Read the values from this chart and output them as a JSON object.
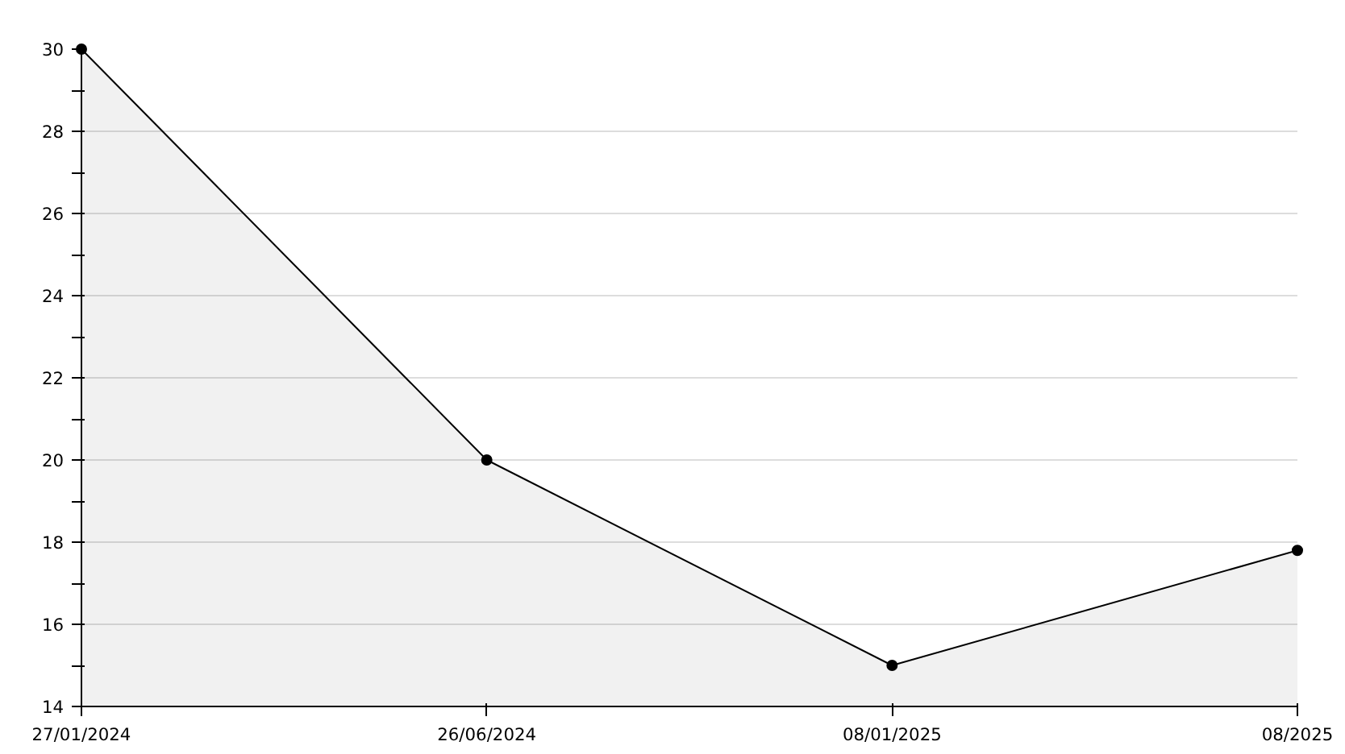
{
  "chart_data": {
    "type": "area",
    "categories": [
      "27/01/2024",
      "26/06/2024",
      "08/01/2025",
      "08/2025"
    ],
    "series": [
      {
        "color": "#000000",
        "values": [
          30,
          20,
          15,
          17.8
        ]
      }
    ],
    "ylim": [
      14,
      30
    ],
    "yticks": [
      14,
      {
        "value": 15,
        "label": null
      },
      16,
      {
        "value": 17,
        "label": null
      },
      18,
      {
        "value": 19,
        "label": null
      },
      20,
      {
        "value": 21,
        "label": null
      },
      22,
      {
        "value": 23,
        "label": null
      },
      24,
      {
        "value": 25,
        "label": null
      },
      26,
      {
        "value": 27,
        "label": null
      },
      28,
      {
        "value": 29,
        "label": null
      },
      30
    ],
    "grid": "y",
    "marker": "circle",
    "line_style": "solid"
  }
}
